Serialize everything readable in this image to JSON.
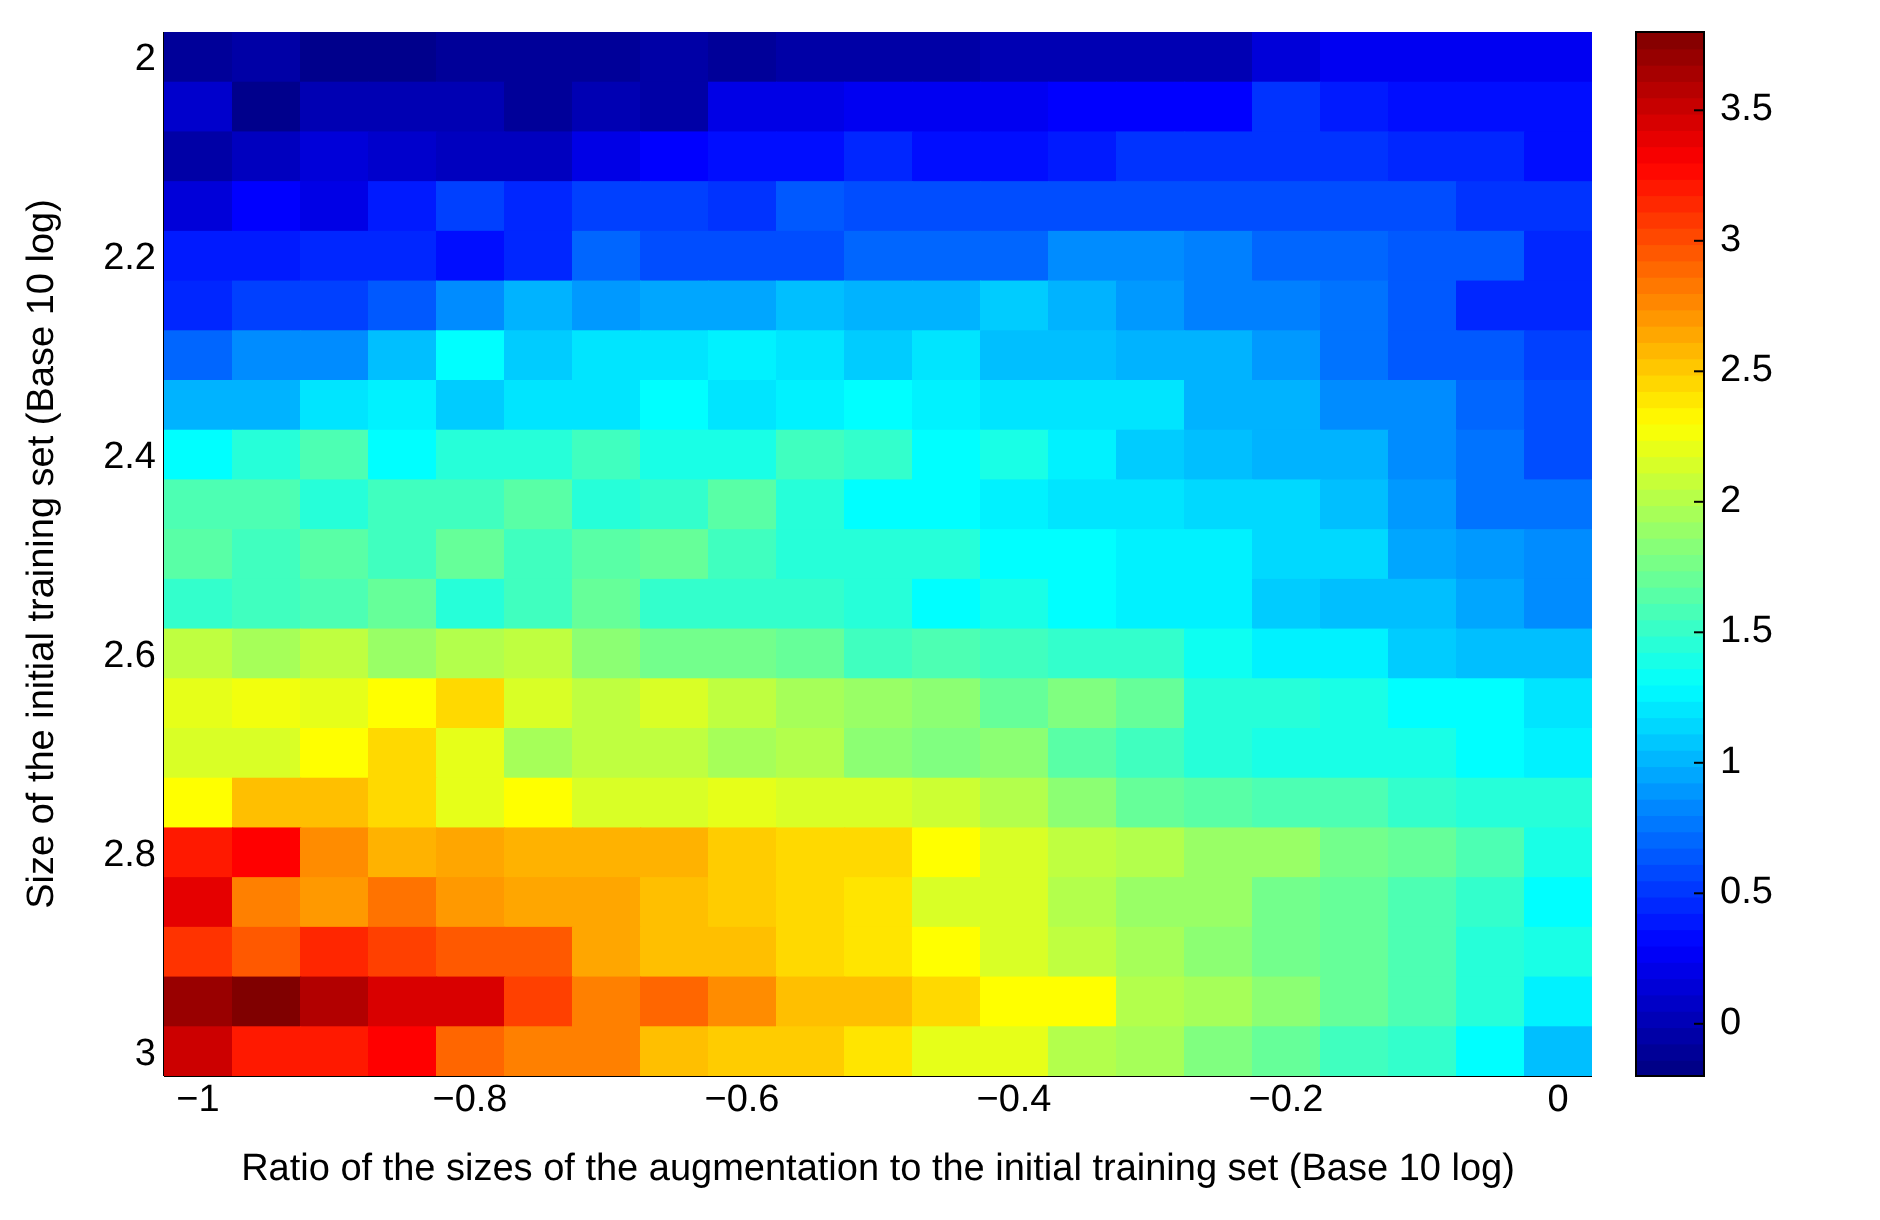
{
  "chart_data": {
    "type": "heatmap",
    "xlabel": "Ratio of the sizes of the augmentation to the initial training set (Base 10 log)",
    "ylabel": "Size of the initial training set (Base 10 log)",
    "x": [
      -1,
      -0.95,
      -0.9,
      -0.85,
      -0.8,
      -0.75,
      -0.7,
      -0.65,
      -0.6,
      -0.55,
      -0.5,
      -0.45,
      -0.4,
      -0.35,
      -0.3,
      -0.25,
      -0.2,
      -0.15,
      -0.1,
      -0.05,
      0
    ],
    "y": [
      2,
      2.05,
      2.1,
      2.15,
      2.2,
      2.25,
      2.3,
      2.35,
      2.4,
      2.45,
      2.5,
      2.55,
      2.6,
      2.65,
      2.7,
      2.75,
      2.8,
      2.85,
      2.9,
      2.95,
      3
    ],
    "xlim": [
      -1.025,
      0.025
    ],
    "xticks": [
      -1,
      -0.8,
      -0.6,
      -0.4,
      -0.2,
      0
    ],
    "ylim": [
      3.025,
      1.975
    ],
    "yticks": [
      2,
      2.2,
      2.4,
      2.6,
      2.8,
      3
    ],
    "clim": [
      -0.2,
      3.8
    ],
    "cticks": [
      0,
      0.5,
      1,
      1.5,
      2,
      2.5,
      3,
      3.5
    ],
    "cells": [
      [
        -0.1,
        -0.05,
        -0.15,
        -0.15,
        -0.1,
        -0.1,
        -0.1,
        -0.05,
        -0.1,
        -0.05,
        -0.05,
        -0.05,
        0,
        0,
        0,
        0,
        0.15,
        0.25,
        0.25,
        0.25,
        0.25
      ],
      [
        0.1,
        -0.15,
        0,
        0,
        0,
        -0.1,
        0,
        -0.05,
        0.2,
        0.2,
        0.25,
        0.25,
        0.25,
        0.3,
        0.3,
        0.3,
        0.5,
        0.4,
        0.35,
        0.35,
        0.35
      ],
      [
        -0.05,
        0.05,
        0.15,
        0.1,
        0.05,
        0.05,
        0.2,
        0.3,
        0.35,
        0.35,
        0.45,
        0.35,
        0.35,
        0.4,
        0.5,
        0.5,
        0.5,
        0.5,
        0.45,
        0.45,
        0.35
      ],
      [
        0.15,
        0.3,
        0.2,
        0.4,
        0.55,
        0.45,
        0.55,
        0.55,
        0.5,
        0.65,
        0.6,
        0.6,
        0.6,
        0.6,
        0.6,
        0.6,
        0.6,
        0.6,
        0.6,
        0.5,
        0.5
      ],
      [
        0.4,
        0.4,
        0.45,
        0.45,
        0.35,
        0.45,
        0.7,
        0.6,
        0.6,
        0.6,
        0.7,
        0.7,
        0.7,
        0.85,
        0.85,
        0.8,
        0.7,
        0.7,
        0.65,
        0.65,
        0.45
      ],
      [
        0.45,
        0.55,
        0.55,
        0.65,
        0.85,
        1,
        0.9,
        0.95,
        0.95,
        1.05,
        1,
        1,
        1.1,
        1,
        0.9,
        0.8,
        0.8,
        0.75,
        0.65,
        0.45,
        0.45
      ],
      [
        0.7,
        0.85,
        0.85,
        1.05,
        1.3,
        1.1,
        1.2,
        1.2,
        1.25,
        1.2,
        1.1,
        1.2,
        1.05,
        1.05,
        1,
        1,
        0.9,
        0.75,
        0.65,
        0.65,
        0.55
      ],
      [
        1,
        1,
        1.2,
        1.25,
        1.1,
        1.2,
        1.2,
        1.3,
        1.2,
        1.25,
        1.3,
        1.25,
        1.2,
        1.2,
        1.2,
        1,
        1,
        0.85,
        0.85,
        0.7,
        0.6
      ],
      [
        1.3,
        1.45,
        1.6,
        1.3,
        1.45,
        1.45,
        1.55,
        1.4,
        1.4,
        1.55,
        1.5,
        1.3,
        1.4,
        1.25,
        1.1,
        1.05,
        1,
        1,
        0.85,
        0.75,
        0.6
      ],
      [
        1.6,
        1.6,
        1.45,
        1.55,
        1.55,
        1.65,
        1.45,
        1.5,
        1.65,
        1.45,
        1.3,
        1.3,
        1.25,
        1.2,
        1.2,
        1.15,
        1.15,
        1.05,
        0.9,
        0.75,
        0.75
      ],
      [
        1.65,
        1.55,
        1.65,
        1.55,
        1.7,
        1.55,
        1.65,
        1.7,
        1.55,
        1.45,
        1.45,
        1.45,
        1.3,
        1.3,
        1.25,
        1.25,
        1.15,
        1.15,
        0.95,
        0.9,
        0.85
      ],
      [
        1.5,
        1.55,
        1.6,
        1.7,
        1.45,
        1.55,
        1.7,
        1.5,
        1.5,
        1.5,
        1.45,
        1.3,
        1.4,
        1.3,
        1.25,
        1.25,
        1.1,
        1.05,
        1.05,
        0.95,
        0.85
      ],
      [
        2.05,
        1.95,
        2.05,
        1.9,
        2,
        2.05,
        1.85,
        1.75,
        1.75,
        1.7,
        1.55,
        1.6,
        1.55,
        1.5,
        1.5,
        1.35,
        1.25,
        1.25,
        1.1,
        1.05,
        1.05
      ],
      [
        2.2,
        2.25,
        2.2,
        2.3,
        2.45,
        2.15,
        2.05,
        2.15,
        2.05,
        1.95,
        1.9,
        1.85,
        1.7,
        1.8,
        1.7,
        1.45,
        1.45,
        1.4,
        1.3,
        1.3,
        1.2
      ],
      [
        2.15,
        2.15,
        2.3,
        2.45,
        2.2,
        1.95,
        2.05,
        2.05,
        1.95,
        2,
        1.85,
        1.8,
        1.85,
        1.65,
        1.55,
        1.45,
        1.4,
        1.4,
        1.4,
        1.3,
        1.25
      ],
      [
        2.3,
        2.55,
        2.55,
        2.45,
        2.2,
        2.3,
        2.15,
        2.15,
        2.2,
        2.15,
        2.15,
        2.1,
        2,
        1.85,
        1.7,
        1.65,
        1.6,
        1.6,
        1.5,
        1.45,
        1.45
      ],
      [
        3.2,
        3.3,
        2.75,
        2.6,
        2.65,
        2.6,
        2.6,
        2.6,
        2.5,
        2.45,
        2.45,
        2.3,
        2.15,
        2.05,
        2,
        1.9,
        1.9,
        1.75,
        1.7,
        1.6,
        1.4
      ],
      [
        3.4,
        2.8,
        2.7,
        2.85,
        2.7,
        2.65,
        2.65,
        2.55,
        2.5,
        2.45,
        2.4,
        2.15,
        2.15,
        2,
        1.9,
        1.9,
        1.75,
        1.7,
        1.6,
        1.5,
        1.3
      ],
      [
        3.1,
        2.95,
        3.15,
        3.05,
        2.95,
        2.95,
        2.65,
        2.55,
        2.55,
        2.45,
        2.4,
        2.3,
        2.15,
        2.05,
        1.95,
        1.85,
        1.75,
        1.7,
        1.6,
        1.45,
        1.4
      ],
      [
        3.7,
        3.8,
        3.6,
        3.45,
        3.45,
        3.05,
        2.8,
        2.9,
        2.75,
        2.55,
        2.55,
        2.45,
        2.3,
        2.3,
        2,
        1.95,
        1.85,
        1.7,
        1.6,
        1.45,
        1.25
      ],
      [
        3.5,
        3.2,
        3.2,
        3.3,
        2.9,
        2.8,
        2.8,
        2.55,
        2.5,
        2.5,
        2.4,
        2.2,
        2.2,
        2,
        1.95,
        1.8,
        1.7,
        1.55,
        1.5,
        1.3,
        1.05
      ]
    ]
  }
}
